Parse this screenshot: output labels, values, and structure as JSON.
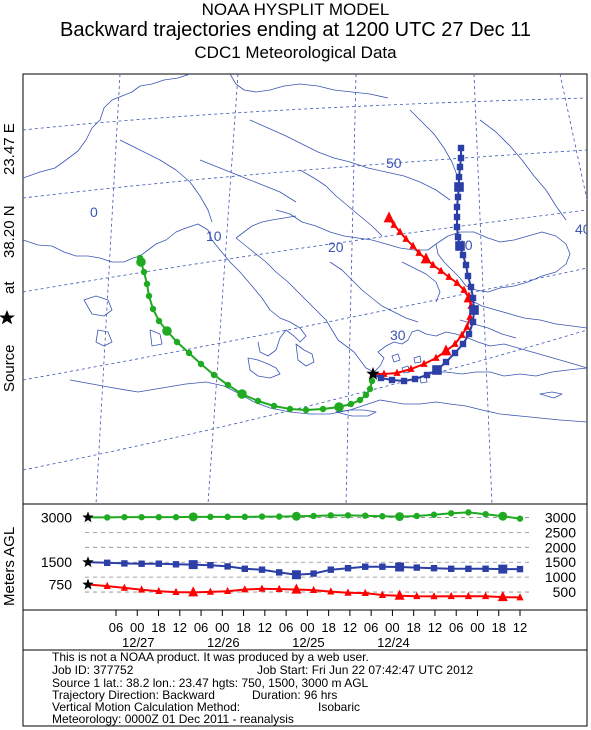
{
  "header": {
    "model": "NOAA HYSPLIT MODEL",
    "title": "Backward trajectories ending at 1200 UTC 27 Dec 11",
    "subtitle": "CDC1 Meteorological Data"
  },
  "side_label": {
    "source_word": "Source",
    "at_word": "at",
    "lat": "38.20 N",
    "lon": "23.47 E",
    "altitude_axis": "Meters AGL"
  },
  "chart_data": [
    {
      "type": "line",
      "name": "trajectory-map",
      "graticule_labels": [
        "0",
        "10",
        "20",
        "30",
        "40",
        "40",
        "50"
      ],
      "source_marker": "star",
      "series": [
        {
          "color": "#ff0000",
          "marker": "triangle",
          "start_height_m": 750,
          "points": [
            [
              373,
              374
            ],
            [
              384,
              374
            ],
            [
              397,
              373
            ],
            [
              411,
              369
            ],
            [
              424,
              364
            ],
            [
              436,
              358
            ],
            [
              446,
              351
            ],
            [
              455,
              344
            ],
            [
              462,
              335
            ],
            [
              467,
              327
            ],
            [
              470,
              317
            ],
            [
              471,
              306
            ],
            [
              469,
              298
            ],
            [
              464,
              290
            ],
            [
              457,
              283
            ],
            [
              449,
              277
            ],
            [
              441,
              271
            ],
            [
              433,
              265
            ],
            [
              426,
              259
            ],
            [
              419,
              253
            ],
            [
              413,
              246
            ],
            [
              406,
              239
            ],
            [
              400,
              232
            ],
            [
              394,
              225
            ],
            [
              389,
              218
            ]
          ]
        },
        {
          "color": "#2b3fa6",
          "marker": "square",
          "start_height_m": 1500,
          "points": [
            [
              373,
              374
            ],
            [
              381,
              378
            ],
            [
              392,
              380
            ],
            [
              404,
              381
            ],
            [
              415,
              379
            ],
            [
              427,
              375
            ],
            [
              437,
              370
            ],
            [
              446,
              362
            ],
            [
              455,
              353
            ],
            [
              463,
              344
            ],
            [
              469,
              334
            ],
            [
              473,
              322
            ],
            [
              474,
              310
            ],
            [
              473,
              298
            ],
            [
              471,
              287
            ],
            [
              468,
              276
            ],
            [
              466,
              265
            ],
            [
              463,
              255
            ],
            [
              460,
              246
            ],
            [
              458,
              237
            ],
            [
              457,
              227
            ],
            [
              457,
              217
            ],
            [
              457,
              207
            ],
            [
              458,
              197
            ],
            [
              459,
              187
            ],
            [
              459,
              177
            ],
            [
              460,
              167
            ],
            [
              461,
              158
            ],
            [
              461,
              148
            ]
          ]
        },
        {
          "color": "#1faa22",
          "marker": "circle",
          "start_height_m": 3000,
          "points": [
            [
              373,
              374
            ],
            [
              372,
              381
            ],
            [
              370,
              389
            ],
            [
              366,
              395
            ],
            [
              360,
              400
            ],
            [
              351,
              404
            ],
            [
              339,
              407
            ],
            [
              323,
              409
            ],
            [
              306,
              410
            ],
            [
              290,
              409
            ],
            [
              274,
              406
            ],
            [
              258,
              401
            ],
            [
              242,
              394
            ],
            [
              228,
              385
            ],
            [
              214,
              375
            ],
            [
              201,
              364
            ],
            [
              189,
              353
            ],
            [
              177,
              342
            ],
            [
              167,
              331
            ],
            [
              159,
              321
            ],
            [
              153,
              309
            ],
            [
              149,
              296
            ],
            [
              147,
              284
            ],
            [
              144,
              272
            ],
            [
              141,
              262
            ],
            [
              140,
              258
            ]
          ]
        }
      ]
    },
    {
      "type": "line",
      "name": "height-profile",
      "ylabel": "Meters AGL",
      "left_tick_labels": [
        "3000",
        "1500",
        "750"
      ],
      "right_tick_labels": [
        "3000",
        "2500",
        "2000",
        "1500",
        "1000",
        "500"
      ],
      "x_tick_labels": [
        "06",
        "00",
        "18",
        "12",
        "06",
        "00",
        "18",
        "12",
        "06",
        "00",
        "18",
        "12",
        "06",
        "00",
        "18",
        "12",
        "06",
        "00",
        "18",
        "12"
      ],
      "date_labels": [
        "12/27",
        "12/26",
        "12/25",
        "12/24"
      ],
      "series": [
        {
          "color": "#ff0000",
          "marker": "triangle",
          "heights_m": [
            750,
            700,
            640,
            580,
            530,
            500,
            490,
            505,
            530,
            585,
            610,
            600,
            585,
            565,
            515,
            475,
            465,
            400,
            380,
            360,
            355,
            360,
            360,
            360,
            330,
            320
          ]
        },
        {
          "color": "#2b3fa6",
          "marker": "square",
          "heights_m": [
            1500,
            1480,
            1460,
            1450,
            1450,
            1430,
            1420,
            1400,
            1360,
            1280,
            1250,
            1160,
            1080,
            1120,
            1250,
            1300,
            1350,
            1350,
            1340,
            1320,
            1300,
            1280,
            1280,
            1280,
            1270,
            1270
          ]
        },
        {
          "color": "#1faa22",
          "marker": "circle",
          "heights_m": [
            3000,
            3000,
            3010,
            3010,
            3010,
            3010,
            3020,
            3020,
            3020,
            3020,
            3030,
            3030,
            3040,
            3050,
            3070,
            3070,
            3060,
            3040,
            3030,
            3050,
            3090,
            3140,
            3170,
            3110,
            3040,
            2960
          ]
        }
      ]
    }
  ],
  "footer": {
    "line1": "This is not a NOAA product. It was produced by a web user.",
    "job_id": "Job ID: 377752",
    "job_start": "Job Start: Fri Jun 22 07:42:47 UTC 2012",
    "source": "Source 1 lat.: 38.2  lon.: 23.47  hgts: 750, 1500, 3000 m AGL",
    "direction": "Trajectory Direction: Backward",
    "duration": "Duration: 96 hrs",
    "vertical_label": "Vertical Motion Calculation Method:",
    "vertical_value": "Isobaric",
    "meteorology": "Meteorology: 0000Z 01 Dec 2011 - reanalysis"
  }
}
